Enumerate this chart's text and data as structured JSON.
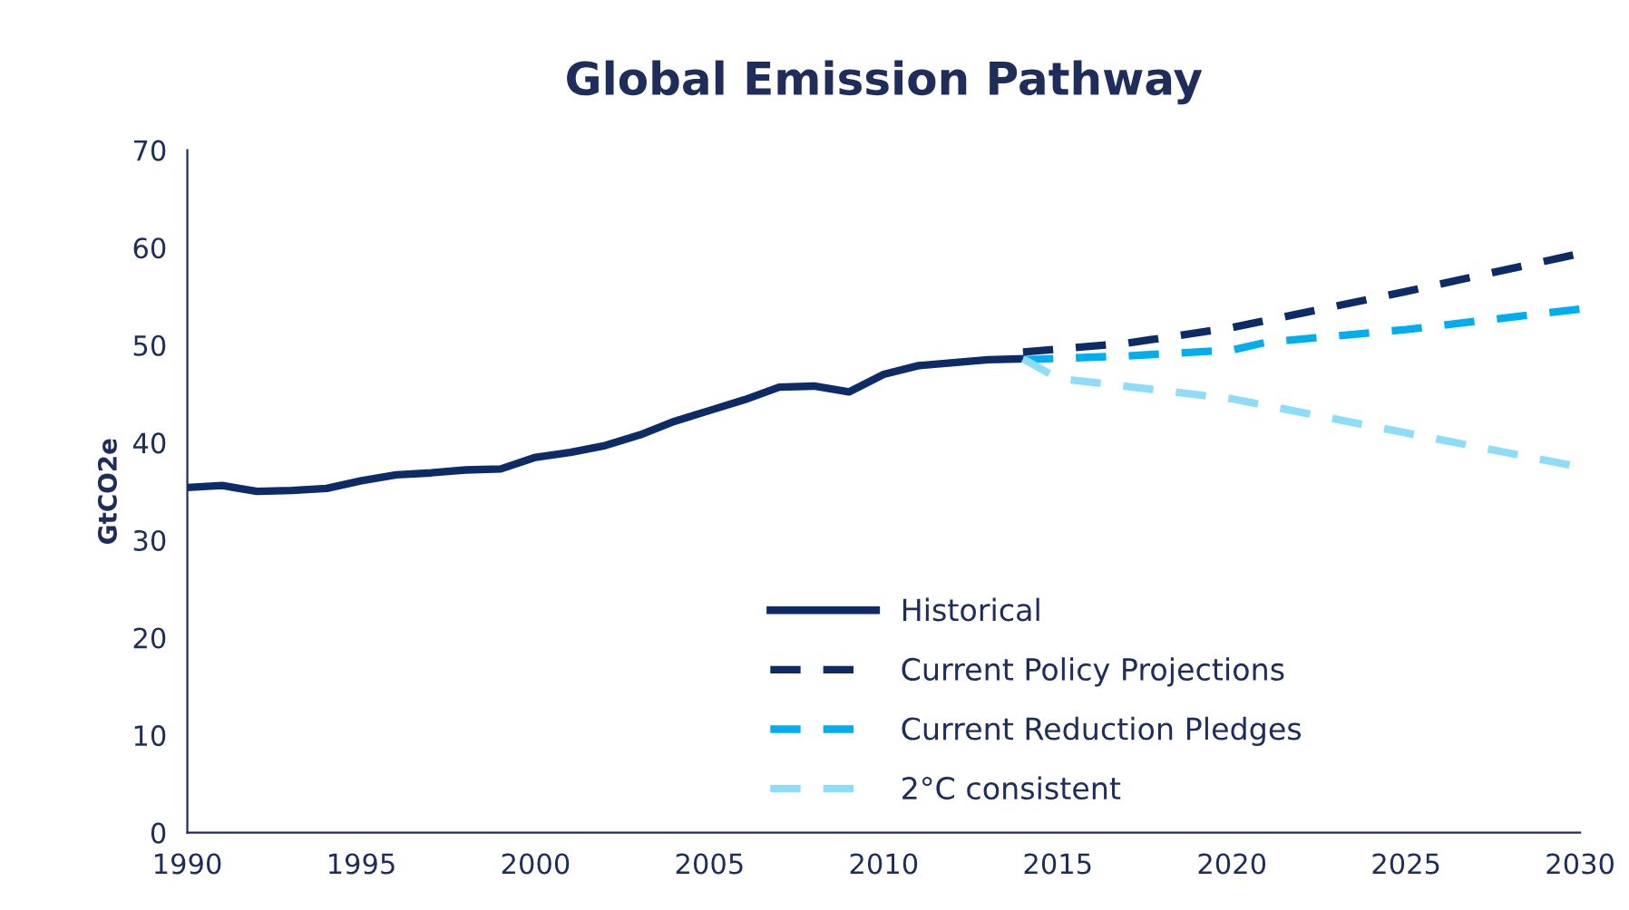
{
  "chart_data": {
    "type": "line",
    "title": "Global Emission Pathway",
    "ylabel": "GtCO2e",
    "xlim": [
      1990,
      2030
    ],
    "xticks": [
      1990,
      1995,
      2000,
      2005,
      2010,
      2015,
      2020,
      2025,
      2030
    ],
    "ylim": [
      0,
      70
    ],
    "yticks": [
      0,
      10,
      20,
      30,
      40,
      50,
      60,
      70
    ],
    "grid": false,
    "legend": "bottom right",
    "series": [
      {
        "name": "Historical",
        "color": "#0d2b66",
        "line_style": "solid",
        "x": [
          1990,
          1991,
          1992,
          1993,
          1994,
          1995,
          1996,
          1997,
          1998,
          1999,
          2000,
          2001,
          2002,
          2003,
          2004,
          2005,
          2006,
          2007,
          2008,
          2009,
          2010,
          2011,
          2012,
          2013,
          2014
        ],
        "values": [
          35.4,
          35.6,
          35.0,
          35.1,
          35.3,
          36.1,
          36.7,
          36.9,
          37.2,
          37.3,
          38.5,
          39.0,
          39.7,
          40.8,
          42.2,
          43.3,
          44.4,
          45.7,
          45.8,
          45.2,
          47.0,
          47.9,
          48.2,
          48.5,
          48.6
        ]
      },
      {
        "name": "Current Policy Projections",
        "color": "#0d2b66",
        "line_style": "dashed",
        "x": [
          2014,
          2017,
          2020,
          2025,
          2030
        ],
        "values": [
          49.3,
          50.2,
          51.8,
          55.5,
          59.4
        ]
      },
      {
        "name": "Current Reduction Pledges",
        "color": "#00aeef",
        "line_style": "dashed",
        "x": [
          2014,
          2017,
          2020,
          2021,
          2025,
          2030
        ],
        "values": [
          48.5,
          48.9,
          49.5,
          50.3,
          51.6,
          53.7
        ]
      },
      {
        "name": "2°C consistent",
        "color": "#8fdcf9",
        "line_style": "dashed",
        "x": [
          2014,
          2015,
          2020,
          2025,
          2030
        ],
        "values": [
          48.6,
          46.6,
          44.5,
          41.0,
          37.5
        ]
      }
    ]
  }
}
